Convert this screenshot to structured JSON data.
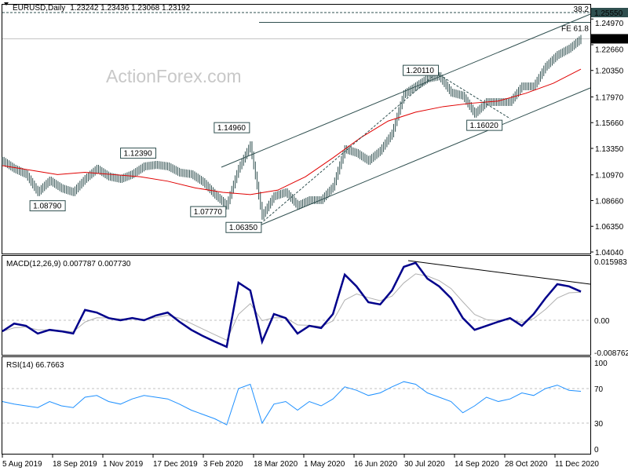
{
  "header": {
    "symbol": "EURUSD,Daily",
    "ohlc": "1.23242 1.23436 1.23068 1.23192"
  },
  "watermark": "ActionForex.com",
  "colors": {
    "bars": "#2f4f4f",
    "ma": "#e00000",
    "trendline": "#2f4f4f",
    "macd": "#00008b",
    "signal": "#b0b0b0",
    "rsi": "#1e90ff",
    "current_price_bg": "#000000",
    "fib_level_bg": "#2f4f4f"
  },
  "chart_data": [
    {
      "type": "bar",
      "subtype": "ohlc",
      "pane": "price",
      "x_ticks": [
        "5 Aug 2019",
        "18 Sep 2019",
        "1 Nov 2019",
        "17 Dec 2019",
        "3 Feb 2020",
        "18 Mar 2020",
        "1 May 2020",
        "16 Jun 2020",
        "30 Jul 2020",
        "14 Sep 2020",
        "28 Oct 2020",
        "11 Dec 2020"
      ],
      "x_range": [
        "5 Aug 2019",
        "Dec 2020"
      ],
      "y_ticks": [
        "1.25550",
        "1.24970",
        "1.22660",
        "1.20350",
        "1.17970",
        "1.15660",
        "1.13350",
        "1.10970",
        "1.08660",
        "1.06350",
        "1.04040"
      ],
      "ylim": [
        1.0404,
        1.2555
      ],
      "closes_sampled": [
        1.1223,
        1.1152,
        1.1103,
        1.0941,
        1.1046,
        1.0976,
        1.0941,
        1.106,
        1.1152,
        1.1082,
        1.106,
        1.1103,
        1.1173,
        1.1187,
        1.1173,
        1.1117,
        1.1103,
        1.1032,
        1.0919,
        1.0821,
        1.1152,
        1.1363,
        1.0729,
        1.0905,
        1.0941,
        1.0821,
        1.087,
        1.087,
        1.099,
        1.1328,
        1.1293,
        1.1223,
        1.1314,
        1.1469,
        1.1822,
        1.1892,
        1.1963,
        1.1984,
        1.1836,
        1.1808,
        1.1646,
        1.1751,
        1.1751,
        1.1751,
        1.1892,
        1.1892,
        1.2069,
        1.2174,
        1.2231,
        1.2319
      ],
      "moving_average_sampled": [
        1.118,
        1.114,
        1.11,
        1.112,
        1.11,
        1.108,
        1.104,
        1.098,
        1.094,
        1.092,
        1.096,
        1.108,
        1.125,
        1.143,
        1.158,
        1.166,
        1.171,
        1.174,
        1.176,
        1.183,
        1.192,
        1.2047
      ],
      "current_price": "1.23192",
      "swing_labels": [
        {
          "text": "1.08790",
          "date_idx": 3,
          "price": 1.0879,
          "pos": "below"
        },
        {
          "text": "1.12390",
          "date_idx": 13,
          "price": 1.1239,
          "pos": "above"
        },
        {
          "text": "1.07770",
          "date_idx": 19,
          "price": 1.0777,
          "pos": "below-left"
        },
        {
          "text": "1.14960",
          "date_idx": 21,
          "price": 1.1496,
          "pos": "above-left"
        },
        {
          "text": "1.06350",
          "date_idx": 22,
          "price": 1.0635,
          "pos": "below-left"
        },
        {
          "text": "1.20110",
          "date_idx": 37,
          "price": 1.2011,
          "pos": "above-left"
        },
        {
          "text": "1.16020",
          "date_idx": 40,
          "price": 1.1602,
          "pos": "below"
        }
      ],
      "fib_levels": [
        {
          "label": "38.2",
          "price": 1.2555,
          "value_label": "1.25550",
          "style": "dashed"
        },
        {
          "label": "FE 61.8",
          "price": 1.2467,
          "style": "solid"
        }
      ]
    },
    {
      "type": "line",
      "pane": "macd",
      "title": "MACD(12,26,9) 0.007787 0.007730",
      "y_ticks": [
        "0.015983",
        "0.00",
        "-0.008762"
      ],
      "ylim": [
        -0.008762,
        0.015983
      ],
      "macd_sampled": [
        -0.003,
        -0.0009,
        -0.0015,
        -0.0036,
        -0.0026,
        -0.003,
        -0.0036,
        0.0028,
        0.0021,
        0.0006,
        0.0,
        0.0006,
        0.0,
        0.0013,
        0.0021,
        -0.0004,
        -0.0026,
        -0.0043,
        -0.0058,
        -0.0072,
        0.0102,
        0.0081,
        -0.0058,
        0.0017,
        0.0006,
        -0.0036,
        -0.0015,
        -0.0021,
        0.0017,
        0.0124,
        0.0092,
        0.0049,
        0.0043,
        0.0081,
        0.0145,
        0.0156,
        0.0113,
        0.0092,
        0.006,
        0.0006,
        -0.0026,
        -0.0015,
        -0.0004,
        0.0006,
        -0.0015,
        0.0017,
        0.006,
        0.0098,
        0.0092,
        0.007787
      ]
    },
    {
      "type": "line",
      "pane": "rsi",
      "title": "RSI(14) 66.7663",
      "y_ticks": [
        "100",
        "70",
        "30",
        "0"
      ],
      "ylim": [
        0,
        100
      ],
      "levels": [
        70,
        30
      ],
      "rsi_sampled": [
        55,
        52,
        50,
        48,
        55,
        50,
        48,
        60,
        62,
        55,
        52,
        58,
        62,
        60,
        58,
        52,
        45,
        40,
        35,
        28,
        70,
        75,
        30,
        52,
        55,
        45,
        55,
        50,
        58,
        72,
        68,
        62,
        65,
        72,
        78,
        75,
        65,
        60,
        55,
        42,
        50,
        60,
        55,
        58,
        65,
        62,
        70,
        74,
        68,
        66.77
      ]
    }
  ]
}
